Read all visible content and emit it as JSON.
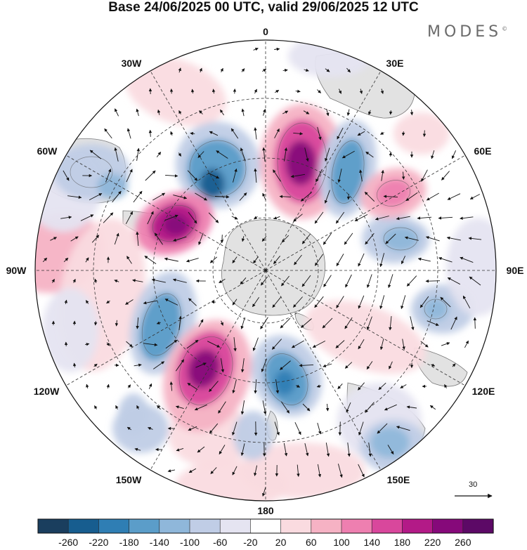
{
  "title": "Base 24/06/2025 00 UTC, valid 29/06/2025 12 UTC",
  "brand": "MODES",
  "brand_mark": "©",
  "longitude_labels": {
    "top": "0",
    "lon30e": "30E",
    "lon60e": "60E",
    "east": "90E",
    "lon120e": "120E",
    "lon150e": "150E",
    "bottom": "180",
    "lon150w": "150W",
    "lon120w": "120W",
    "west": "90W",
    "lon60w": "60W",
    "lon30w": "30W"
  },
  "reference_vector_label": "30",
  "colorbar": {
    "ticks": [
      "-260",
      "-220",
      "-180",
      "-140",
      "-100",
      "-60",
      "-20",
      "20",
      "60",
      "100",
      "140",
      "180",
      "220",
      "260"
    ],
    "colors": [
      "#1a3e5e",
      "#175d8f",
      "#2f7eb4",
      "#5b9dc9",
      "#8fb7da",
      "#c0cde6",
      "#e5e4f1",
      "#ffffff",
      "#fadbe0",
      "#f6b2c4",
      "#ee7fb0",
      "#d9479c",
      "#b31a87",
      "#86097a",
      "#5c0966"
    ]
  },
  "palette": {
    "land": "#e2e2e2",
    "coast": "#777777",
    "grid": "#333333"
  }
}
